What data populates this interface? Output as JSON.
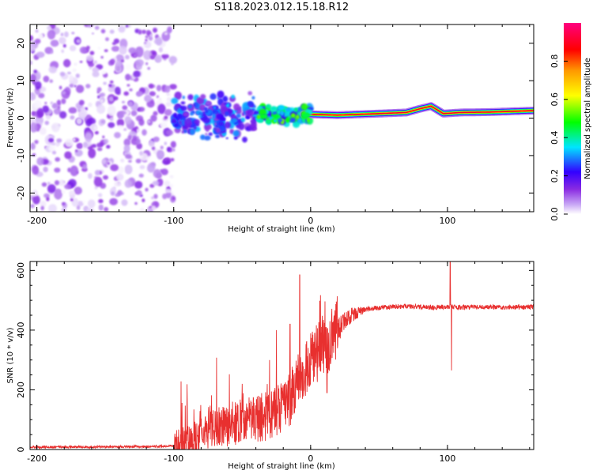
{
  "title": "S118.2023.012.15.18.R12",
  "colors": {
    "background": "#ffffff",
    "snr_line": "#e8302f",
    "colormap": [
      "#ffffff",
      "#c9a8f5",
      "#8a2be2",
      "#3300ff",
      "#00e5ff",
      "#00ff00",
      "#ffff00",
      "#ff9900",
      "#ff0000",
      "#ff0080"
    ]
  },
  "chart_data": [
    {
      "type": "heatmap",
      "id": "spectrogram",
      "xlabel": "Height of straight line (km)",
      "ylabel": "Frequency (Hz)",
      "xlim": [
        -205,
        163
      ],
      "ylim": [
        -25,
        25
      ],
      "xticks": [
        -200,
        -100,
        0,
        100
      ],
      "xtick_labels": [
        "-200",
        "-100",
        "0",
        "100"
      ],
      "yticks": [
        -20,
        -10,
        0,
        10,
        20
      ],
      "ytick_labels": [
        "-20",
        "-10",
        "0",
        "10",
        "20"
      ],
      "colorbar": {
        "label": "Normalized spectral amplitude",
        "range": [
          0.0,
          1.0
        ],
        "ticks": [
          0.0,
          0.2,
          0.4,
          0.6,
          0.8
        ],
        "tick_labels": [
          "0.0",
          "0.2",
          "0.4",
          "0.6",
          "0.8"
        ],
        "colormap": "rainbow (white-violet-blue-cyan-green-yellow-red-magenta)"
      },
      "regions": [
        {
          "x_range": [
            -205,
            -100
          ],
          "freq_range": [
            -25,
            25
          ],
          "amplitude_range": [
            0.0,
            0.15
          ],
          "pattern": "scattered noise blobs"
        },
        {
          "x_range": [
            -100,
            -40
          ],
          "freq_range": [
            -8,
            8
          ],
          "amplitude_range": [
            0.1,
            0.35
          ],
          "pattern": "clustered blobs near 0 Hz"
        },
        {
          "x_range": [
            -40,
            0
          ],
          "freq_range": [
            -3,
            4
          ],
          "amplitude_range": [
            0.2,
            0.5
          ],
          "pattern": "narrowing band"
        },
        {
          "x_range": [
            0,
            163
          ],
          "freq_range": [
            0,
            3
          ],
          "amplitude_range": [
            0.6,
            1.0
          ],
          "pattern": "steady carrier line"
        }
      ],
      "carrier_frequency_hz": [
        {
          "x": 0,
          "freq": 1.0
        },
        {
          "x": 20,
          "freq": 0.8
        },
        {
          "x": 50,
          "freq": 1.2
        },
        {
          "x": 70,
          "freq": 1.5
        },
        {
          "x": 80,
          "freq": 2.5
        },
        {
          "x": 88,
          "freq": 3.2
        },
        {
          "x": 97,
          "freq": 1.2
        },
        {
          "x": 110,
          "freq": 1.5
        },
        {
          "x": 130,
          "freq": 1.6
        },
        {
          "x": 163,
          "freq": 2.0
        }
      ]
    },
    {
      "type": "line",
      "id": "snr",
      "xlabel": "Height of straight line (km)",
      "ylabel": "SNR (10 * v/v)",
      "xlim": [
        -205,
        163
      ],
      "ylim": [
        0,
        630
      ],
      "xticks": [
        -200,
        -100,
        0,
        100
      ],
      "xtick_labels": [
        "-200",
        "-100",
        "0",
        "100"
      ],
      "yticks": [
        0,
        200,
        400,
        600
      ],
      "ytick_labels": [
        "0",
        "200",
        "400",
        "600"
      ],
      "series": [
        {
          "color": "#e8302f",
          "x": [
            -205,
            -180,
            -150,
            -120,
            -100,
            -90,
            -85,
            -80,
            -75,
            -70,
            -65,
            -60,
            -55,
            -50,
            -45,
            -40,
            -35,
            -30,
            -25,
            -20,
            -15,
            -10,
            -5,
            0,
            5,
            10,
            15,
            20,
            25,
            30,
            35,
            40,
            50,
            60,
            70,
            80,
            90,
            95,
            100,
            102,
            104,
            110,
            120,
            130,
            140,
            150,
            163
          ],
          "y": [
            8,
            8,
            9,
            10,
            12,
            20,
            35,
            55,
            60,
            70,
            75,
            80,
            90,
            95,
            100,
            105,
            110,
            115,
            125,
            140,
            170,
            220,
            260,
            300,
            320,
            340,
            370,
            400,
            430,
            450,
            460,
            470,
            475,
            478,
            480,
            478,
            476,
            478,
            476,
            480,
            478,
            476,
            477,
            478,
            477,
            478,
            478
          ]
        }
      ],
      "spikes": [
        {
          "x": -50,
          "y": 220
        },
        {
          "x": -30,
          "y": 300
        },
        {
          "x": -25,
          "y": 400
        },
        {
          "x": -15,
          "y": 420
        },
        {
          "x": -8,
          "y": 585
        },
        {
          "x": 3,
          "y": 390
        },
        {
          "x": 12,
          "y": 190
        },
        {
          "x": 102,
          "y": 630
        },
        {
          "x": 103,
          "y": 265
        }
      ]
    }
  ]
}
